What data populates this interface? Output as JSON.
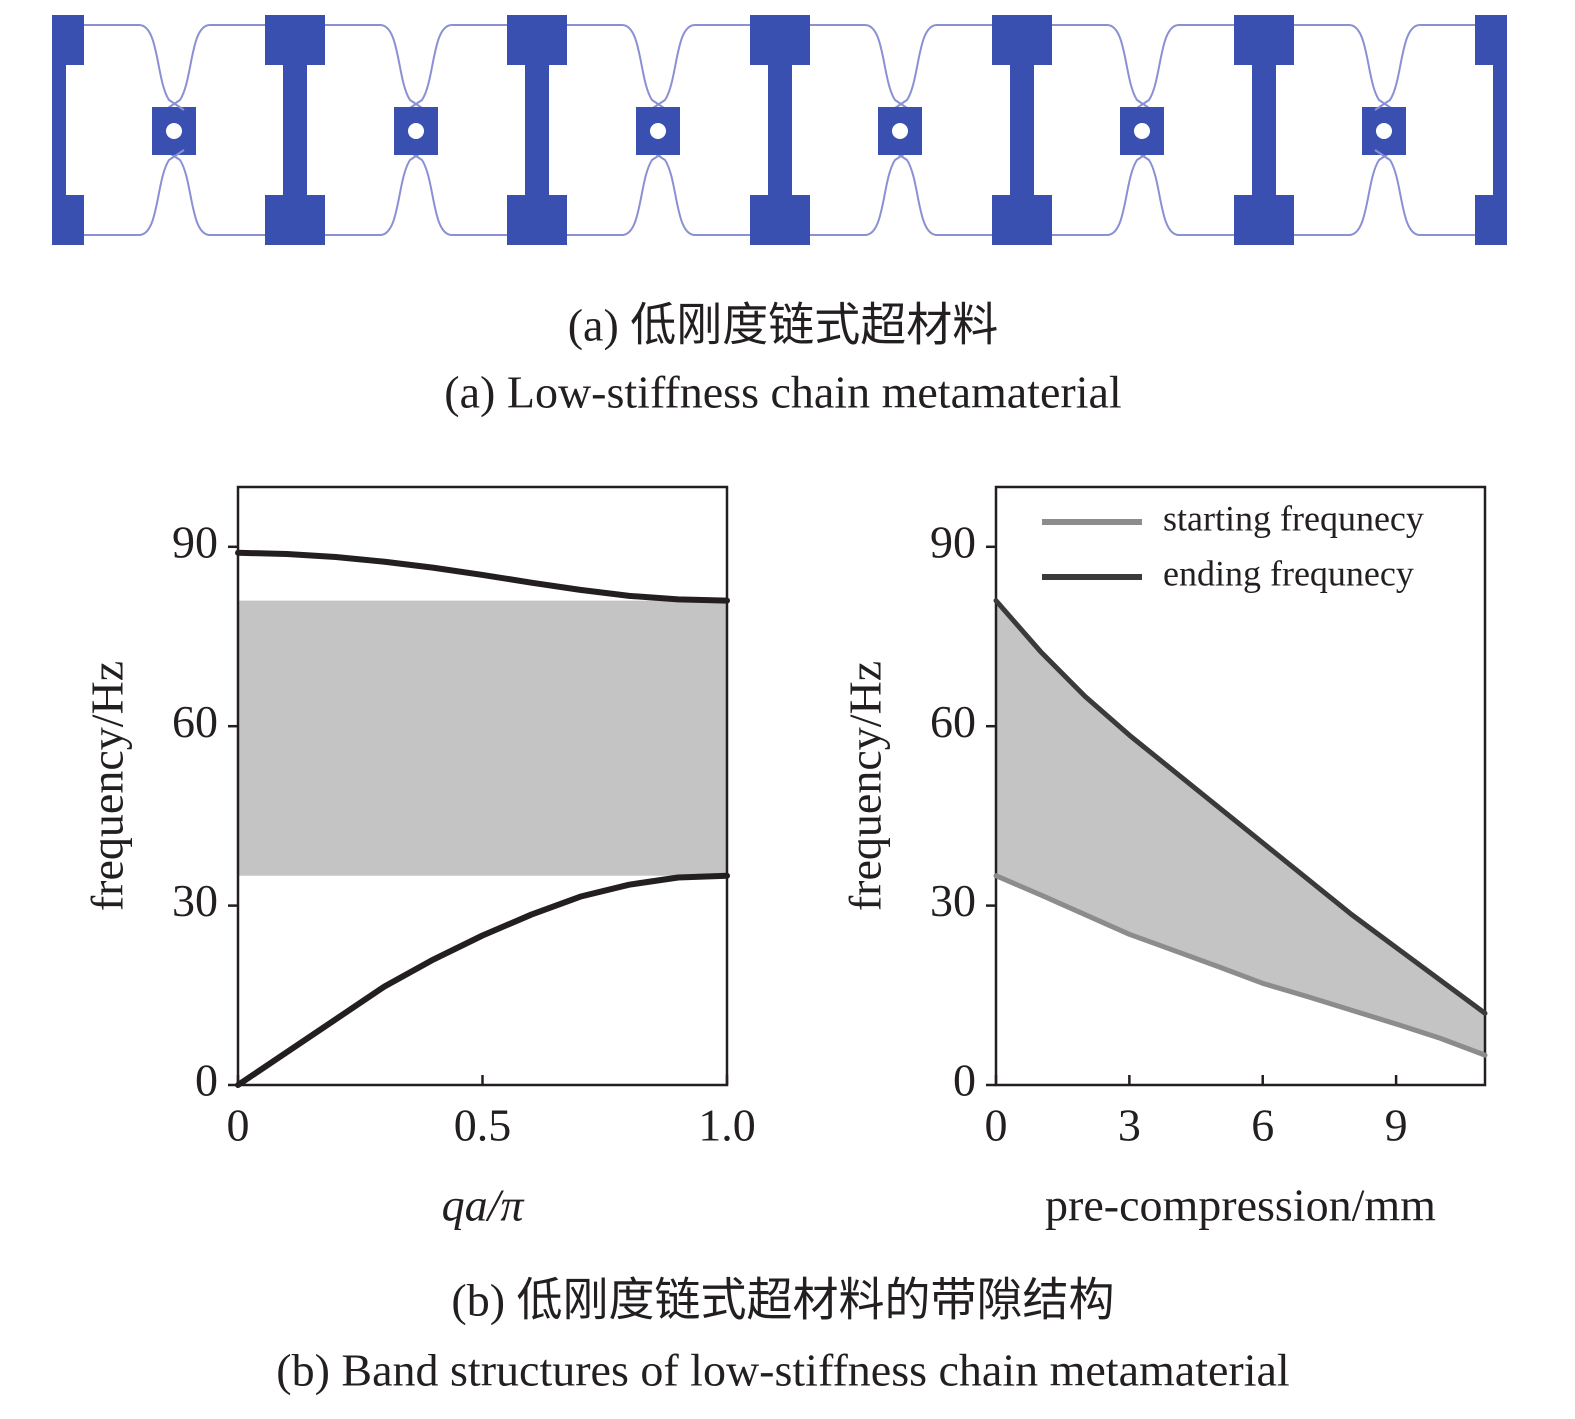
{
  "captions": [
    "(a) 低刚度链式超材料",
    "(a) Low-stiffness chain metamaterial",
    "(b) 低刚度链式超材料的带隙结构",
    "(b) Band structures of low-stiffness chain metamaterial"
  ],
  "chart_data": [
    {
      "type": "line",
      "xlabel": "qa/π",
      "ylabel": "frequency/Hz",
      "x": [
        0,
        0.1,
        0.2,
        0.3,
        0.4,
        0.5,
        0.6,
        0.7,
        0.8,
        0.9,
        1.0
      ],
      "series": [
        {
          "color": "#231f20",
          "values": [
            0,
            5.5,
            11,
            16.5,
            21,
            25,
            28.5,
            31.5,
            33.5,
            34.7,
            35
          ]
        },
        {
          "color": "#231f20",
          "values": [
            89,
            88.8,
            88.3,
            87.5,
            86.5,
            85.3,
            84,
            82.8,
            81.8,
            81.2,
            81
          ]
        }
      ],
      "band_gap": [
        35,
        81
      ],
      "band_gap_color": "#c4c4c4",
      "xlim": [
        0,
        1
      ],
      "xticks": [
        0,
        0.5,
        {
          "value": 1,
          "label": "1.0"
        }
      ],
      "ylim": [
        0,
        100
      ],
      "yticks": [
        0,
        30,
        60,
        90
      ]
    },
    {
      "type": "line",
      "xlabel": "pre-compression/mm",
      "ylabel": "frequency/Hz",
      "x": [
        0,
        1,
        2,
        3,
        4,
        5,
        6,
        7,
        8,
        9,
        10,
        11
      ],
      "series": [
        {
          "name": "starting frequnecy",
          "color": "#8c8c8c",
          "values": [
            35,
            31.8,
            28.5,
            25.2,
            22.5,
            19.8,
            17,
            14.8,
            12.5,
            10.2,
            7.8,
            5
          ]
        },
        {
          "name": "ending frequnecy",
          "color": "#3a3a3a",
          "values": [
            81,
            72.5,
            65,
            58.5,
            52.5,
            46.5,
            40.5,
            34.5,
            28.5,
            23,
            17.5,
            12
          ]
        }
      ],
      "fill_between": true,
      "fill_color": "#c4c4c4",
      "legend": "upper right",
      "xlim": [
        0,
        11
      ],
      "xticks": [
        0,
        3,
        6,
        9
      ],
      "ylim": [
        0,
        100
      ],
      "yticks": [
        0,
        30,
        60,
        90
      ]
    }
  ]
}
